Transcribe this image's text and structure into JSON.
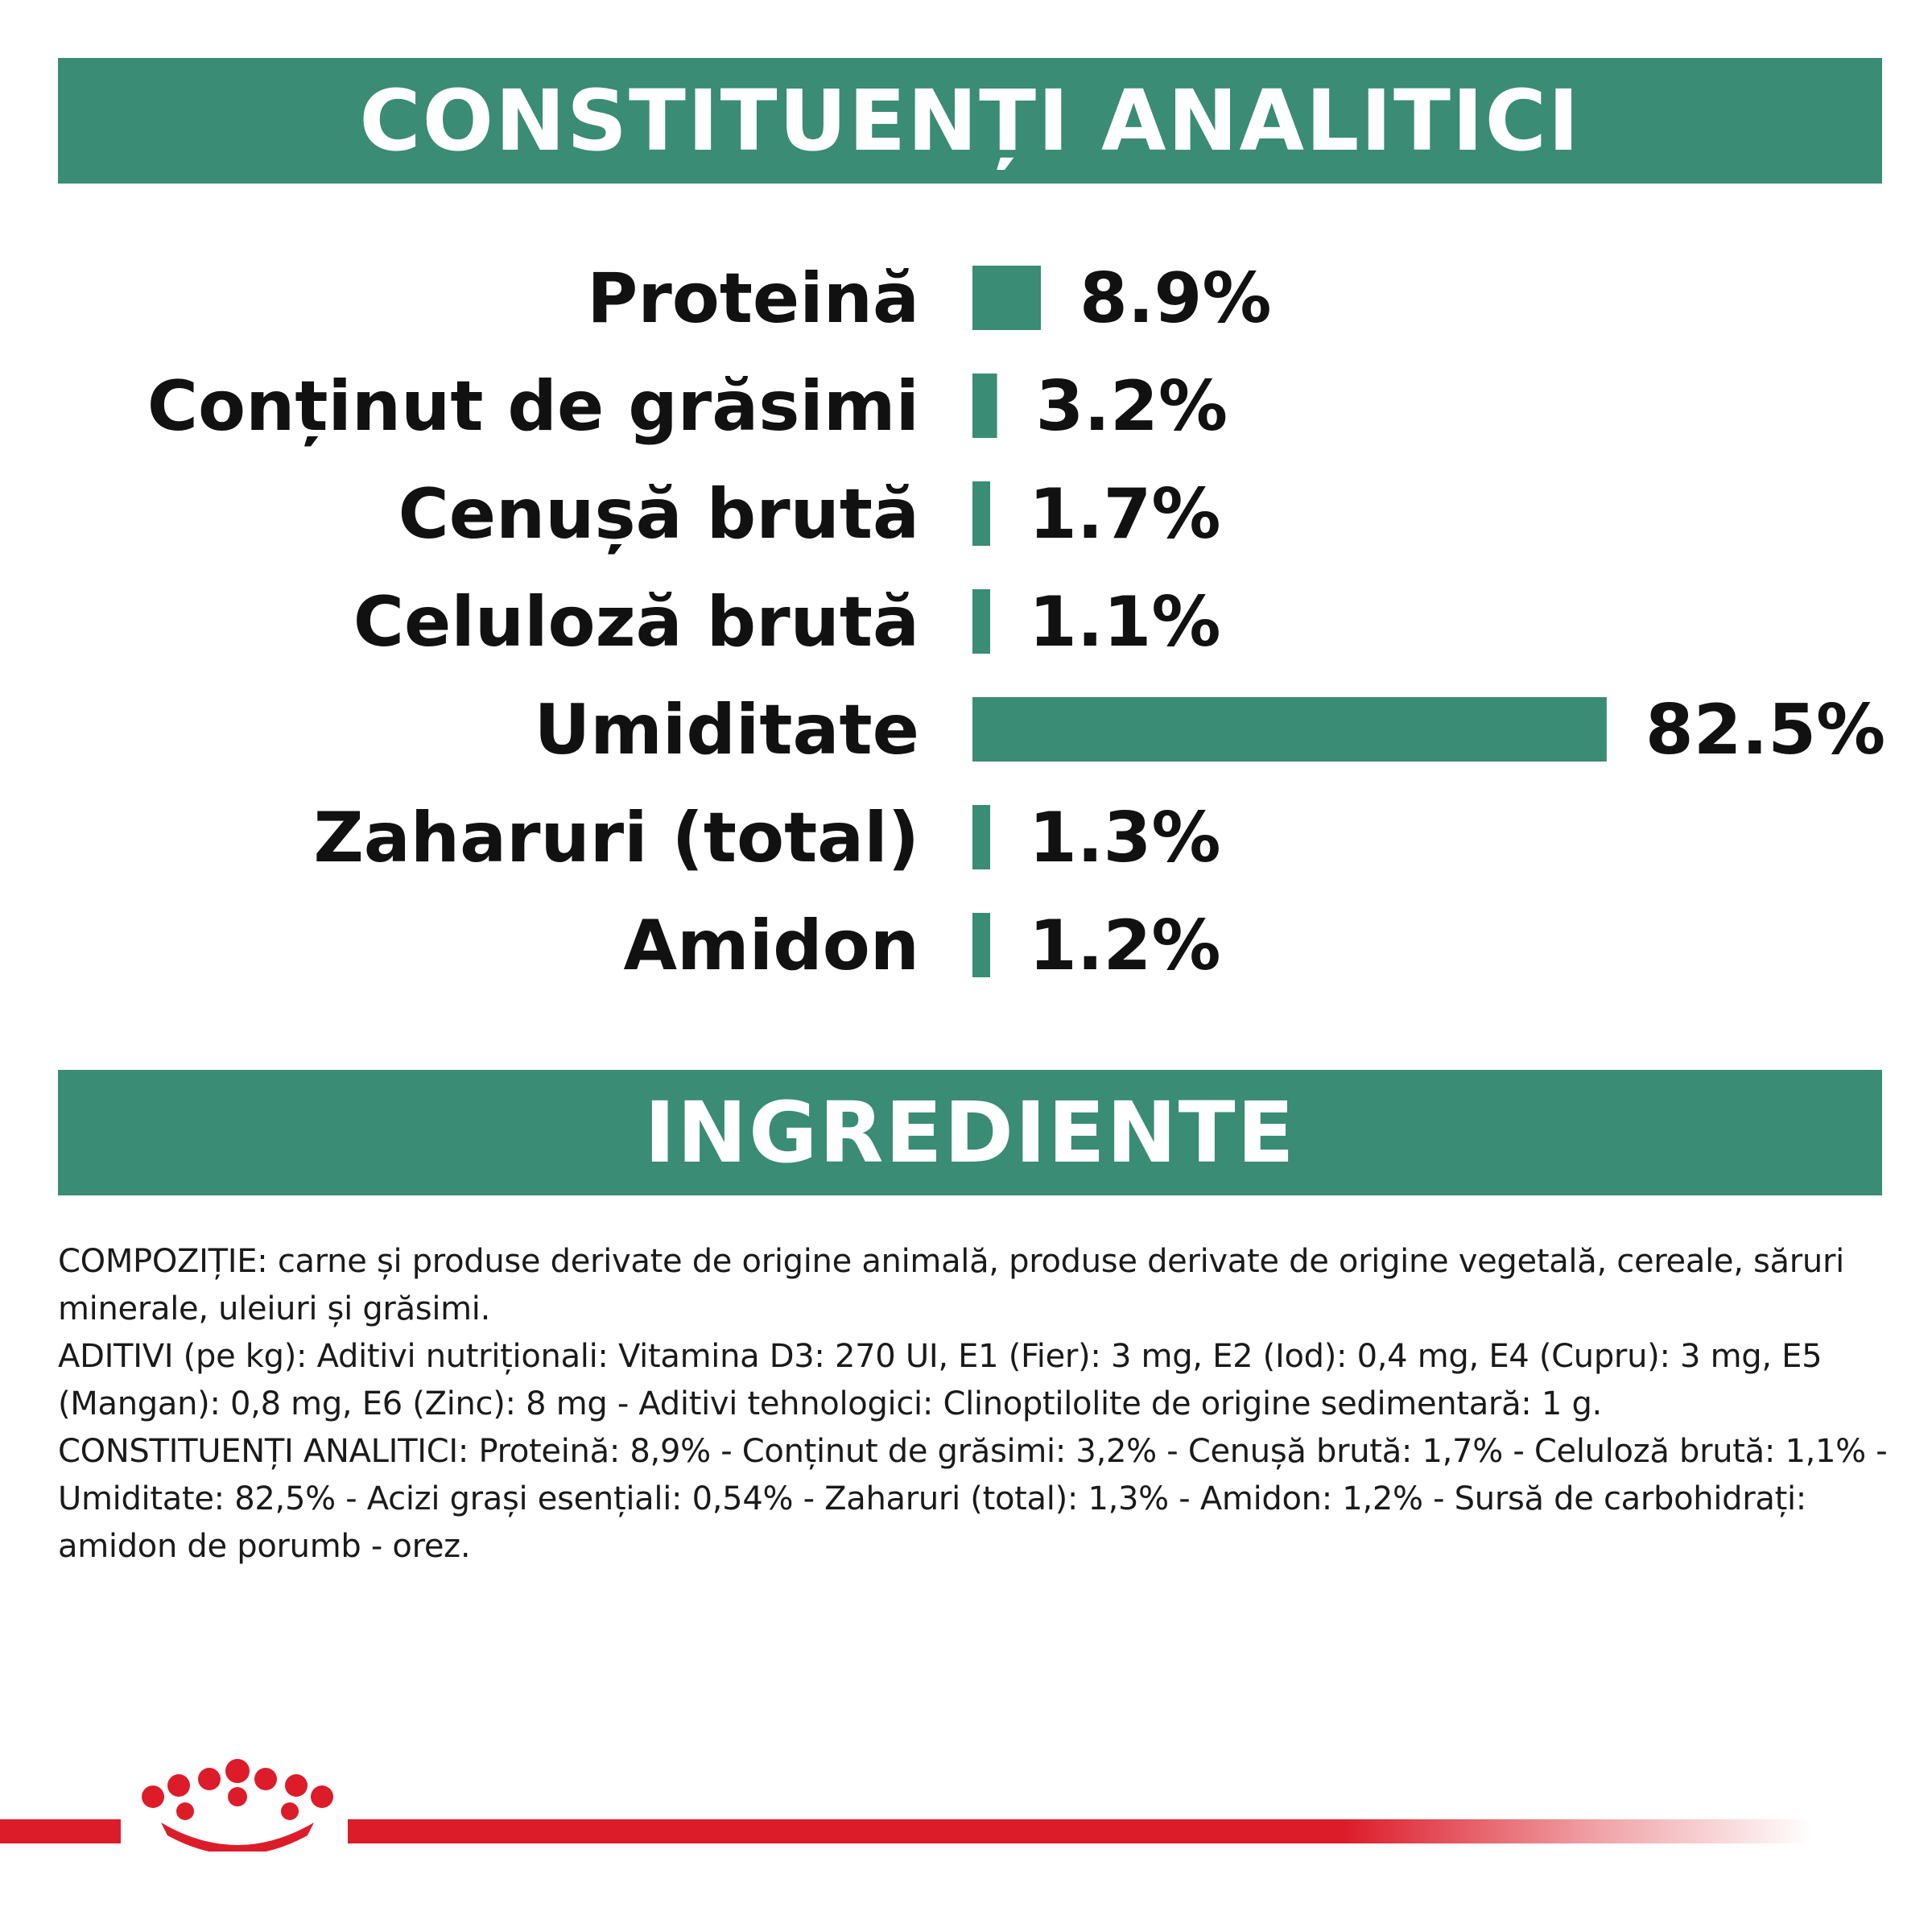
{
  "header": {
    "title": "CONSTITUENȚI ANALITICI"
  },
  "section2": {
    "title": "INGREDIENTE"
  },
  "colors": {
    "accent": "#3a8c74",
    "brand_red": "#dd1c2a",
    "text": "#111111"
  },
  "chart_data": {
    "type": "bar",
    "orientation": "horizontal",
    "categories": [
      "Proteină",
      "Conținut de grăsimi",
      "Cenușă brută",
      "Celuloză brută",
      "Umiditate",
      "Zaharuri (total)",
      "Amidon"
    ],
    "values": [
      8.9,
      3.2,
      1.7,
      1.1,
      82.5,
      1.3,
      1.2
    ],
    "value_labels": [
      "8.9%",
      "3.2%",
      "1.7%",
      "1.1%",
      "82.5%",
      "1.3%",
      "1.2%"
    ],
    "unit": "%",
    "grid": false,
    "legend": "none",
    "bar_color": "#3a8c74"
  },
  "ingredients": {
    "paragraphs": [
      "COMPOZIȚIE: carne și produse derivate de origine animală, produse derivate de origine vegetală, cereale, săruri minerale, uleiuri și grăsimi.",
      "ADITIVI (pe kg): Aditivi nutriționali: Vitamina D3: 270 UI, E1 (Fier): 3 mg, E2 (Iod): 0,4 mg, E4 (Cupru): 3 mg, E5 (Mangan): 0,8 mg, E6 (Zinc): 8 mg - Aditivi tehnologici: Clinoptilolite de origine sedimentară: 1 g.",
      "CONSTITUENȚI ANALITICI: Proteină: 8,9% - Conținut de grăsimi: 3,2% - Cenușă brută: 1,7% - Celuloză brută: 1,1% - Umiditate: 82,5% - Acizi grași esențiali: 0,54% - Zaharuri (total): 1,3% - Amidon: 1,2% - Sursă de carbohidrați: amidon de porumb - orez."
    ]
  },
  "footer": {
    "logo": "crown-logo-icon"
  }
}
